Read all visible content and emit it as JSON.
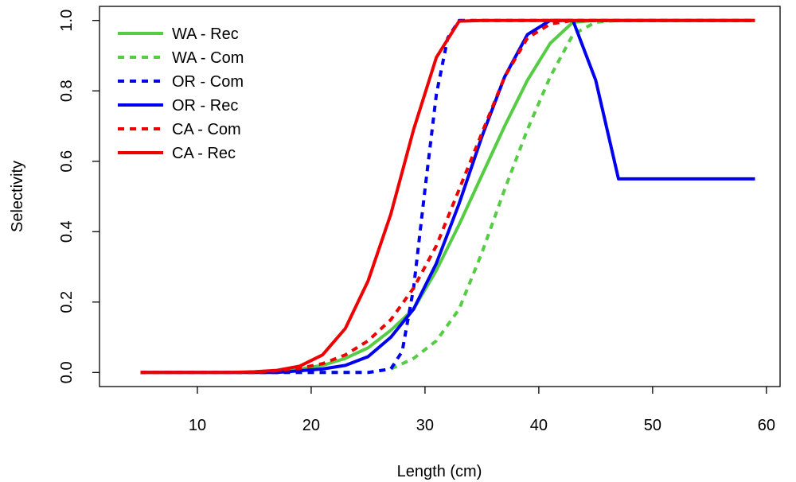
{
  "chart_data": {
    "type": "line",
    "title": "",
    "xlabel": "Length (cm)",
    "ylabel": "Selectivity",
    "xlim": [
      1.4,
      61.2
    ],
    "ylim": [
      -0.04,
      1.04
    ],
    "x_ticks": [
      10,
      20,
      30,
      40,
      50,
      60
    ],
    "x_tick_labels": [
      "10",
      "20",
      "30",
      "40",
      "50",
      "60"
    ],
    "y_ticks": [
      0.0,
      0.2,
      0.4,
      0.6,
      0.8,
      1.0
    ],
    "y_tick_labels": [
      "0.0",
      "0.2",
      "0.4",
      "0.6",
      "0.8",
      "1.0"
    ],
    "grid": false,
    "legend_position": "top-left",
    "series": [
      {
        "name": "WA - Rec",
        "color": "#55cc44",
        "dash": "solid",
        "points": [
          [
            5,
            0
          ],
          [
            15,
            0.0
          ],
          [
            17,
            0.003
          ],
          [
            19,
            0.01
          ],
          [
            21,
            0.02
          ],
          [
            23,
            0.04
          ],
          [
            25,
            0.07
          ],
          [
            27,
            0.12
          ],
          [
            29,
            0.18
          ],
          [
            31,
            0.29
          ],
          [
            33,
            0.42
          ],
          [
            35,
            0.56
          ],
          [
            37,
            0.7
          ],
          [
            39,
            0.83
          ],
          [
            41,
            0.935
          ],
          [
            43,
            0.995
          ],
          [
            45,
            1.0
          ],
          [
            59,
            1.0
          ]
        ]
      },
      {
        "name": "WA - Com",
        "color": "#55cc44",
        "dash": "dashed",
        "points": [
          [
            5,
            0
          ],
          [
            25,
            0.0
          ],
          [
            27,
            0.01
          ],
          [
            29,
            0.04
          ],
          [
            31,
            0.09
          ],
          [
            33,
            0.18
          ],
          [
            35,
            0.34
          ],
          [
            37,
            0.52
          ],
          [
            39,
            0.69
          ],
          [
            41,
            0.84
          ],
          [
            43,
            0.96
          ],
          [
            45,
            0.995
          ],
          [
            47,
            1.0
          ],
          [
            59,
            1.0
          ]
        ]
      },
      {
        "name": "OR - Com",
        "color": "#0000ee",
        "dash": "dashed",
        "points": [
          [
            5,
            0
          ],
          [
            25,
            0.0
          ],
          [
            27,
            0.01
          ],
          [
            28,
            0.06
          ],
          [
            29,
            0.24
          ],
          [
            30,
            0.52
          ],
          [
            31,
            0.79
          ],
          [
            32,
            0.95
          ],
          [
            33,
            1.0
          ],
          [
            59,
            1.0
          ]
        ]
      },
      {
        "name": "OR - Rec",
        "color": "#0000ee",
        "dash": "solid",
        "points": [
          [
            5,
            0
          ],
          [
            17,
            0.0
          ],
          [
            19,
            0.005
          ],
          [
            21,
            0.01
          ],
          [
            23,
            0.02
          ],
          [
            25,
            0.045
          ],
          [
            27,
            0.1
          ],
          [
            29,
            0.18
          ],
          [
            31,
            0.31
          ],
          [
            33,
            0.48
          ],
          [
            35,
            0.67
          ],
          [
            37,
            0.84
          ],
          [
            39,
            0.96
          ],
          [
            41,
            1.0
          ],
          [
            43,
            1.0
          ],
          [
            45,
            0.83
          ],
          [
            47,
            0.55
          ],
          [
            59,
            0.55
          ]
        ]
      },
      {
        "name": "CA - Com",
        "color": "#ee0000",
        "dash": "dashed",
        "points": [
          [
            5,
            0
          ],
          [
            15,
            0.0
          ],
          [
            17,
            0.005
          ],
          [
            19,
            0.012
          ],
          [
            21,
            0.025
          ],
          [
            23,
            0.05
          ],
          [
            25,
            0.09
          ],
          [
            27,
            0.15
          ],
          [
            29,
            0.24
          ],
          [
            31,
            0.36
          ],
          [
            33,
            0.52
          ],
          [
            35,
            0.68
          ],
          [
            37,
            0.84
          ],
          [
            39,
            0.95
          ],
          [
            41,
            0.99
          ],
          [
            43,
            1.0
          ],
          [
            59,
            1.0
          ]
        ]
      },
      {
        "name": "CA - Rec",
        "color": "#ee0000",
        "dash": "solid",
        "points": [
          [
            5,
            0
          ],
          [
            13,
            0.0
          ],
          [
            15,
            0.002
          ],
          [
            17,
            0.006
          ],
          [
            19,
            0.018
          ],
          [
            21,
            0.05
          ],
          [
            23,
            0.125
          ],
          [
            25,
            0.26
          ],
          [
            27,
            0.45
          ],
          [
            29,
            0.69
          ],
          [
            31,
            0.895
          ],
          [
            33,
            0.998
          ],
          [
            35,
            1.0
          ],
          [
            59,
            1.0
          ]
        ]
      }
    ]
  }
}
